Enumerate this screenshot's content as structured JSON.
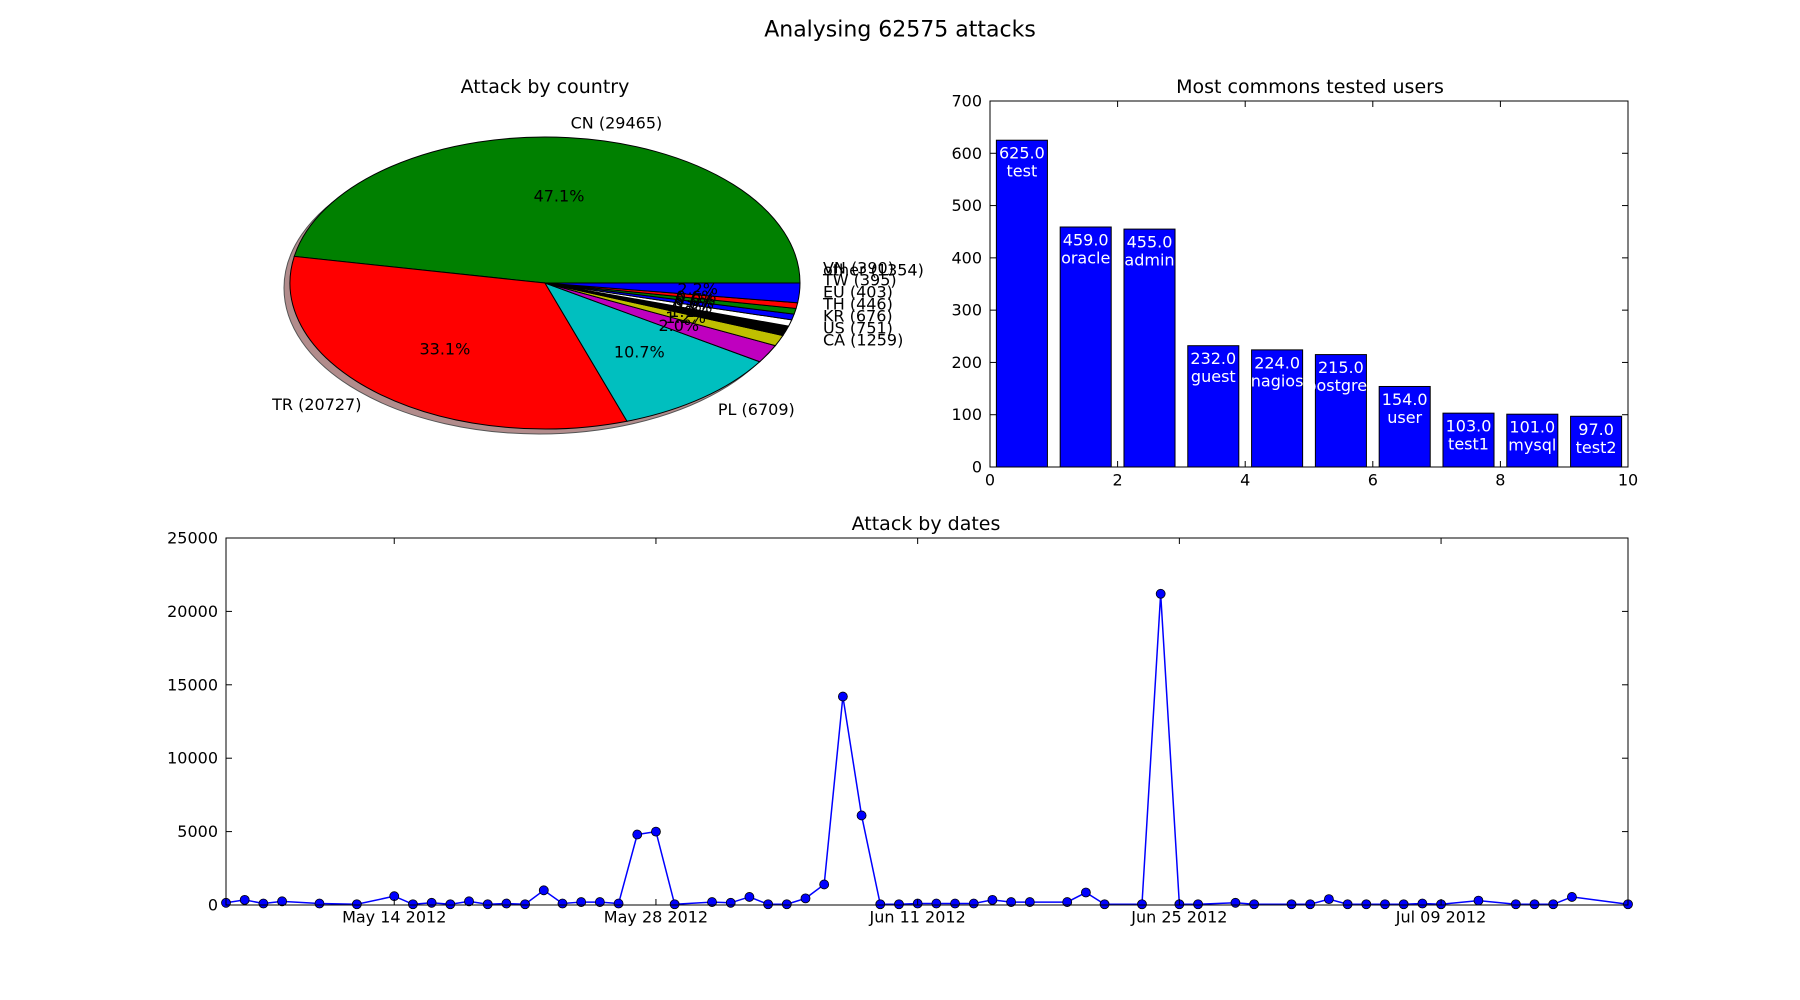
{
  "figure": {
    "title": "Analysing 62575 attacks"
  },
  "chart_data": [
    {
      "type": "pie",
      "title": "Attack by country",
      "slices": [
        {
          "label": "CN (29465)",
          "value": 29465,
          "pct": "47.1%",
          "color": "#008000"
        },
        {
          "label": "TR (20727)",
          "value": 20727,
          "pct": "33.1%",
          "color": "#ff0000"
        },
        {
          "label": "PL (6709)",
          "value": 6709,
          "pct": "10.7%",
          "color": "#00bfbf"
        },
        {
          "label": "CA (1259)",
          "value": 1259,
          "pct": "2.0%",
          "color": "#bf00bf"
        },
        {
          "label": "US (751)",
          "value": 751,
          "pct": "1.2%",
          "color": "#bfbf00"
        },
        {
          "label": "KR (676)",
          "value": 676,
          "pct": "1.1%",
          "color": "#000000"
        },
        {
          "label": "TH (446)",
          "value": 446,
          "pct": "0.7%",
          "color": "#ffffff"
        },
        {
          "label": "EU (403)",
          "value": 403,
          "pct": "0.6%",
          "color": "#0000ff"
        },
        {
          "label": "TW (395)",
          "value": 395,
          "pct": "0.6%",
          "color": "#008000"
        },
        {
          "label": "VN (390)",
          "value": 390,
          "pct": "0.6%",
          "color": "#ff0000"
        },
        {
          "label": "other (1354)",
          "value": 1354,
          "pct": "2.2%",
          "color": "#0000ff"
        }
      ]
    },
    {
      "type": "bar",
      "title": "Most commons tested users",
      "bar_color": "#0000ff",
      "bars": [
        {
          "x": 0,
          "value": 625.0,
          "value_label": "625.0",
          "name": "test"
        },
        {
          "x": 1,
          "value": 459.0,
          "value_label": "459.0",
          "name": "oracle"
        },
        {
          "x": 2,
          "value": 455.0,
          "value_label": "455.0",
          "name": "admin"
        },
        {
          "x": 3,
          "value": 232.0,
          "value_label": "232.0",
          "name": "guest"
        },
        {
          "x": 4,
          "value": 224.0,
          "value_label": "224.0",
          "name": "nagios"
        },
        {
          "x": 5,
          "value": 215.0,
          "value_label": "215.0",
          "name": "postgres"
        },
        {
          "x": 6,
          "value": 154.0,
          "value_label": "154.0",
          "name": "user"
        },
        {
          "x": 7,
          "value": 103.0,
          "value_label": "103.0",
          "name": "test1"
        },
        {
          "x": 8,
          "value": 101.0,
          "value_label": "101.0",
          "name": "mysql"
        },
        {
          "x": 9,
          "value": 97.0,
          "value_label": "97.0",
          "name": "test2"
        }
      ],
      "xlim": [
        0,
        10
      ],
      "ylim": [
        0,
        700
      ],
      "xticks": [
        "0",
        "2",
        "4",
        "6",
        "8",
        "10"
      ],
      "yticks": [
        "0",
        "100",
        "200",
        "300",
        "400",
        "500",
        "600",
        "700"
      ]
    },
    {
      "type": "line",
      "title": "Attack by dates",
      "line_color": "#0000ff",
      "xlim": [
        "2012-05-05",
        "2012-07-19"
      ],
      "ylim": [
        0,
        25000
      ],
      "yticks": [
        "0",
        "5000",
        "10000",
        "15000",
        "20000",
        "25000"
      ],
      "xticks": [
        {
          "date": "2012-05-14",
          "label": "May 14 2012"
        },
        {
          "date": "2012-05-28",
          "label": "May 28 2012"
        },
        {
          "date": "2012-06-11",
          "label": "Jun 11 2012"
        },
        {
          "date": "2012-06-25",
          "label": "Jun 25 2012"
        },
        {
          "date": "2012-07-09",
          "label": "Jul 09 2012"
        }
      ],
      "points": [
        [
          "2012-05-05",
          150
        ],
        [
          "2012-05-06",
          350
        ],
        [
          "2012-05-07",
          100
        ],
        [
          "2012-05-08",
          250
        ],
        [
          "2012-05-10",
          100
        ],
        [
          "2012-05-12",
          50
        ],
        [
          "2012-05-14",
          600
        ],
        [
          "2012-05-15",
          50
        ],
        [
          "2012-05-16",
          150
        ],
        [
          "2012-05-17",
          50
        ],
        [
          "2012-05-18",
          250
        ],
        [
          "2012-05-19",
          50
        ],
        [
          "2012-05-20",
          100
        ],
        [
          "2012-05-21",
          50
        ],
        [
          "2012-05-22",
          1000
        ],
        [
          "2012-05-23",
          100
        ],
        [
          "2012-05-24",
          200
        ],
        [
          "2012-05-25",
          200
        ],
        [
          "2012-05-26",
          100
        ],
        [
          "2012-05-27",
          4800
        ],
        [
          "2012-05-28",
          5000
        ],
        [
          "2012-05-29",
          50
        ],
        [
          "2012-05-31",
          200
        ],
        [
          "2012-06-01",
          150
        ],
        [
          "2012-06-02",
          550
        ],
        [
          "2012-06-03",
          50
        ],
        [
          "2012-06-04",
          50
        ],
        [
          "2012-06-05",
          450
        ],
        [
          "2012-06-06",
          1400
        ],
        [
          "2012-06-07",
          14200
        ],
        [
          "2012-06-08",
          6100
        ],
        [
          "2012-06-09",
          50
        ],
        [
          "2012-06-10",
          50
        ],
        [
          "2012-06-11",
          100
        ],
        [
          "2012-06-12",
          100
        ],
        [
          "2012-06-13",
          100
        ],
        [
          "2012-06-14",
          100
        ],
        [
          "2012-06-15",
          350
        ],
        [
          "2012-06-16",
          200
        ],
        [
          "2012-06-17",
          200
        ],
        [
          "2012-06-19",
          200
        ],
        [
          "2012-06-20",
          850
        ],
        [
          "2012-06-21",
          50
        ],
        [
          "2012-06-23",
          50
        ],
        [
          "2012-06-24",
          21200
        ],
        [
          "2012-06-25",
          50
        ],
        [
          "2012-06-26",
          50
        ],
        [
          "2012-06-28",
          150
        ],
        [
          "2012-06-29",
          50
        ],
        [
          "2012-07-01",
          50
        ],
        [
          "2012-07-02",
          50
        ],
        [
          "2012-07-03",
          400
        ],
        [
          "2012-07-04",
          50
        ],
        [
          "2012-07-05",
          50
        ],
        [
          "2012-07-06",
          50
        ],
        [
          "2012-07-07",
          50
        ],
        [
          "2012-07-08",
          100
        ],
        [
          "2012-07-09",
          50
        ],
        [
          "2012-07-11",
          300
        ],
        [
          "2012-07-13",
          50
        ],
        [
          "2012-07-14",
          50
        ],
        [
          "2012-07-15",
          50
        ],
        [
          "2012-07-16",
          550
        ],
        [
          "2012-07-19",
          50
        ]
      ]
    }
  ]
}
